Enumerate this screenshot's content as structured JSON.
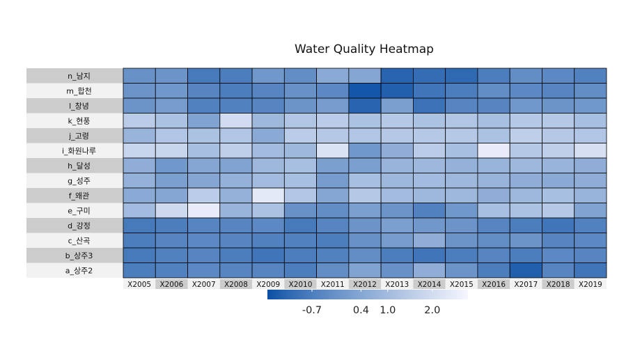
{
  "chart_data": {
    "type": "heatmap",
    "title": "Water Quality Heatmap",
    "xlabel": "",
    "ylabel": "",
    "x_categories": [
      "X2005",
      "X2006",
      "X2007",
      "X2008",
      "X2009",
      "X2010",
      "X2011",
      "X2012",
      "X2013",
      "X2014",
      "X2015",
      "X2016",
      "X2017",
      "X2018",
      "X2019"
    ],
    "y_categories": [
      "n_남지",
      "m_합천",
      "l_창녕",
      "k_현풍",
      "j_고령",
      "i_화원나루",
      "h_달성",
      "g_성주",
      "f_왜관",
      "e_구미",
      "d_강정",
      "c_산곡",
      "b_상주3",
      "a_상주2"
    ],
    "values": [
      [
        -0.2,
        -0.1,
        -0.8,
        -0.7,
        0.0,
        -0.3,
        0.5,
        0.4,
        -1.3,
        -1.1,
        -1.2,
        -0.7,
        -0.3,
        -0.4,
        -0.6
      ],
      [
        -0.1,
        0.0,
        -0.5,
        -0.7,
        -0.5,
        -0.2,
        -0.4,
        -1.6,
        -1.4,
        -0.9,
        -0.7,
        -0.3,
        -0.4,
        -0.5,
        -0.3
      ],
      [
        -0.1,
        0.1,
        -0.6,
        -0.6,
        -0.5,
        -0.1,
        0.1,
        -1.3,
        0.2,
        -1.0,
        -0.5,
        -0.5,
        0.0,
        -0.1,
        0.0
      ],
      [
        1.5,
        1.2,
        0.3,
        2.0,
        0.9,
        1.3,
        1.5,
        1.2,
        1.4,
        1.2,
        1.3,
        1.1,
        1.4,
        1.4,
        1.1
      ],
      [
        0.8,
        1.3,
        1.2,
        1.3,
        0.5,
        1.5,
        1.4,
        1.3,
        1.4,
        1.4,
        1.4,
        1.2,
        1.6,
        1.4,
        1.3
      ],
      [
        1.8,
        1.8,
        1.1,
        1.6,
        1.0,
        0.9,
        2.2,
        0.0,
        0.6,
        1.5,
        1.1,
        2.5,
        1.4,
        1.6,
        2.1
      ],
      [
        0.6,
        0.0,
        0.4,
        0.3,
        0.9,
        1.1,
        0.2,
        0.2,
        0.8,
        0.9,
        0.7,
        0.8,
        0.9,
        0.8,
        0.6
      ],
      [
        0.7,
        0.2,
        0.4,
        0.7,
        1.0,
        1.1,
        0.1,
        1.1,
        0.9,
        1.0,
        0.9,
        0.8,
        0.6,
        0.5,
        0.6
      ],
      [
        0.5,
        0.4,
        1.5,
        0.7,
        2.4,
        1.3,
        0.4,
        1.4,
        1.0,
        0.9,
        0.9,
        0.6,
        0.9,
        1.1,
        0.8
      ],
      [
        1.0,
        1.9,
        2.5,
        0.8,
        1.2,
        -0.2,
        -0.3,
        0.2,
        -0.1,
        -0.6,
        0.0,
        1.1,
        1.2,
        1.4,
        0.3
      ],
      [
        -0.8,
        -0.7,
        -0.5,
        -0.5,
        -0.4,
        -0.8,
        -0.5,
        -0.1,
        0.2,
        0.0,
        -0.1,
        -0.5,
        -0.7,
        -0.9,
        -0.6
      ],
      [
        -0.7,
        -0.5,
        -0.4,
        -0.5,
        -0.6,
        -0.6,
        -0.7,
        -0.2,
        0.1,
        0.6,
        -0.1,
        -0.3,
        -0.1,
        -0.5,
        -0.4
      ],
      [
        -0.8,
        -0.6,
        -0.5,
        -0.7,
        -0.9,
        -0.7,
        -0.6,
        -0.3,
        -0.7,
        -0.9,
        -0.7,
        -0.5,
        -0.7,
        -0.4,
        -0.5
      ],
      [
        -0.7,
        -0.6,
        -0.4,
        -0.5,
        -0.5,
        -0.7,
        -0.3,
        0.3,
        -0.2,
        0.6,
        -0.1,
        -0.7,
        -1.4,
        -0.5,
        -0.9
      ]
    ],
    "colorbar": {
      "ticks": [
        -0.7,
        0.4,
        1.0,
        2.0
      ],
      "tick_labels": [
        "-0.7",
        "0.4",
        "1.0",
        "2.0"
      ],
      "range": [
        -1.7,
        2.8
      ],
      "low_color": "#0b4fa4",
      "high_color": "#f5f6fe",
      "position": "bottom"
    },
    "label_bg_colors": [
      "#cccccc",
      "#f2f2f2"
    ],
    "cell_border_color": "#000000"
  }
}
